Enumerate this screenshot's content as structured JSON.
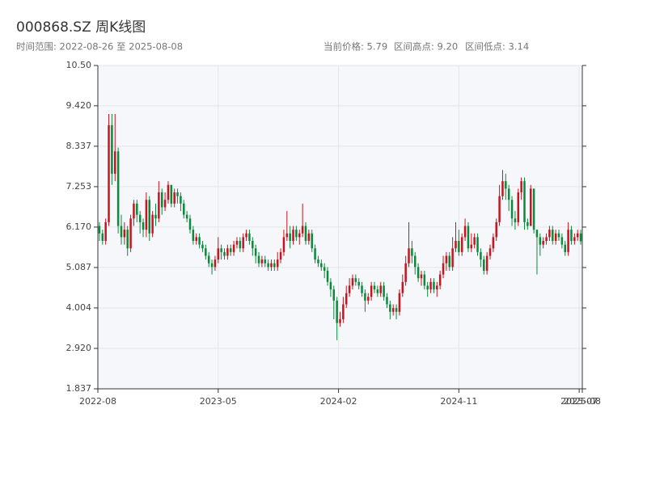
{
  "chart_data": {
    "type": "candlestick",
    "title": "000868.SZ 周K线图",
    "subtitle": "时间范围: 2022-08-26 至 2025-08-08",
    "info": [
      "当前价格: 5.79",
      "区间高点: 9.20",
      "区间低点: 3.14"
    ],
    "up_color": "#c8141e",
    "down_color": "#0c8a3c",
    "grid": true,
    "xlim": [
      0,
      155
    ],
    "xticks": [
      {
        "value": 0,
        "label": "2022-08"
      },
      {
        "value": 38.5,
        "label": "2023-05"
      },
      {
        "value": 77,
        "label": "2024-02"
      },
      {
        "value": 115.5,
        "label": "2024-11"
      },
      {
        "value": 154,
        "label": "2025-07"
      },
      {
        "value": 155,
        "label": "2025-08"
      }
    ],
    "ylim": [
      1.837,
      10.5
    ],
    "yticks": [
      1.837,
      {
        "value": 2.92,
        "label": "2.920"
      },
      4.004,
      5.087,
      {
        "value": 6.17,
        "label": "6.170"
      },
      7.253,
      8.337,
      {
        "value": 9.42,
        "label": "9.420"
      },
      {
        "value": 10.5,
        "label": "10.50"
      }
    ],
    "open": [
      6.2,
      6.0,
      5.8,
      6.3,
      8.9,
      7.6,
      8.2,
      6.2,
      5.9,
      6.1,
      5.6,
      6.4,
      6.8,
      6.5,
      6.3,
      6.1,
      6.9,
      6.0,
      6.5,
      6.4,
      7.1,
      6.7,
      6.9,
      7.3,
      6.8,
      7.1,
      7.0,
      6.8,
      6.5,
      6.4,
      6.1,
      5.8,
      5.9,
      5.7,
      5.6,
      5.4,
      5.2,
      5.1,
      5.3,
      5.6,
      5.5,
      5.4,
      5.6,
      5.5,
      5.7,
      5.8,
      5.6,
      5.9,
      6.0,
      5.8,
      5.6,
      5.4,
      5.2,
      5.3,
      5.2,
      5.1,
      5.2,
      5.1,
      5.3,
      5.5,
      5.9,
      6.0,
      5.8,
      6.1,
      5.9,
      6.0,
      6.2,
      5.8,
      6.0,
      5.6,
      5.3,
      5.2,
      5.1,
      5.0,
      4.7,
      4.5,
      4.2,
      3.6,
      3.7,
      4.1,
      4.4,
      4.6,
      4.8,
      4.7,
      4.6,
      4.4,
      4.2,
      4.3,
      4.6,
      4.5,
      4.4,
      4.6,
      4.3,
      4.1,
      3.9,
      4.0,
      3.9,
      4.4,
      4.7,
      5.2,
      5.6,
      5.4,
      5.1,
      4.8,
      4.9,
      4.6,
      4.5,
      4.7,
      4.5,
      4.6,
      4.9,
      5.2,
      5.4,
      5.1,
      5.6,
      5.8,
      5.5,
      5.9,
      6.2,
      5.6,
      5.7,
      5.9,
      5.5,
      5.3,
      5.0,
      5.4,
      5.6,
      5.9,
      6.3,
      7.0,
      7.4,
      7.2,
      6.9,
      6.4,
      6.3,
      7.1,
      7.4,
      6.3,
      6.2,
      7.2,
      6.1,
      5.9,
      5.7,
      5.8,
      5.9,
      6.1,
      5.8,
      6.0,
      5.9,
      5.7,
      5.5,
      6.1,
      5.8,
      5.9,
      6.0
    ],
    "high": [
      6.3,
      6.1,
      6.4,
      9.2,
      9.2,
      9.2,
      8.3,
      6.5,
      6.3,
      6.2,
      6.5,
      6.9,
      6.9,
      6.6,
      6.4,
      7.1,
      7.0,
      6.6,
      6.8,
      7.4,
      7.2,
      7.1,
      7.4,
      7.3,
      7.2,
      7.2,
      7.1,
      6.9,
      6.6,
      6.5,
      6.2,
      6.0,
      6.0,
      5.8,
      5.7,
      5.5,
      5.3,
      5.4,
      5.9,
      5.7,
      5.6,
      5.7,
      5.7,
      5.8,
      5.9,
      5.9,
      6.0,
      6.1,
      6.1,
      5.9,
      5.7,
      5.5,
      5.4,
      5.4,
      5.3,
      5.3,
      5.3,
      5.5,
      5.6,
      6.1,
      6.6,
      6.2,
      6.2,
      6.2,
      6.1,
      6.8,
      6.3,
      6.1,
      6.1,
      5.7,
      5.4,
      5.3,
      5.2,
      5.1,
      4.8,
      4.6,
      4.3,
      3.9,
      4.3,
      4.6,
      4.8,
      4.9,
      4.9,
      4.8,
      4.7,
      4.5,
      4.4,
      4.7,
      4.7,
      4.6,
      4.7,
      4.7,
      4.4,
      4.2,
      4.1,
      4.1,
      4.5,
      4.9,
      5.4,
      6.3,
      5.8,
      5.5,
      5.2,
      5.0,
      5.0,
      4.7,
      4.8,
      4.8,
      4.7,
      5.0,
      5.4,
      5.5,
      5.5,
      5.9,
      6.3,
      6.1,
      6.0,
      6.4,
      6.3,
      6.0,
      6.0,
      6.0,
      5.6,
      5.4,
      5.5,
      5.7,
      6.0,
      6.4,
      7.3,
      7.7,
      7.6,
      7.3,
      7.0,
      6.6,
      7.2,
      7.5,
      7.5,
      6.4,
      7.3,
      7.2,
      6.1,
      6.0,
      5.9,
      6.0,
      6.2,
      6.2,
      6.1,
      6.1,
      6.0,
      5.8,
      6.3,
      6.2,
      6.0,
      6.1,
      6.1
    ],
    "low": [
      5.8,
      5.7,
      5.7,
      6.2,
      7.3,
      7.4,
      6.0,
      5.7,
      5.7,
      5.4,
      5.5,
      6.2,
      6.3,
      6.0,
      5.9,
      5.9,
      5.8,
      5.9,
      6.2,
      6.3,
      6.5,
      6.6,
      6.8,
      6.7,
      6.7,
      6.8,
      6.6,
      6.4,
      6.3,
      6.0,
      5.7,
      5.7,
      5.6,
      5.5,
      5.3,
      5.1,
      4.9,
      5.0,
      5.2,
      5.3,
      5.3,
      5.3,
      5.4,
      5.4,
      5.6,
      5.5,
      5.5,
      5.8,
      5.7,
      5.4,
      5.2,
      5.1,
      5.1,
      5.1,
      5.0,
      5.0,
      5.0,
      5.0,
      5.2,
      5.4,
      5.8,
      5.6,
      5.7,
      5.8,
      5.7,
      5.9,
      5.7,
      5.7,
      5.5,
      5.2,
      5.1,
      5.0,
      4.8,
      4.6,
      4.3,
      3.7,
      3.14,
      3.5,
      3.6,
      4.0,
      4.3,
      4.5,
      4.6,
      4.5,
      4.3,
      3.9,
      4.1,
      4.2,
      4.4,
      4.3,
      4.3,
      4.2,
      4.0,
      3.7,
      3.8,
      3.7,
      3.8,
      4.3,
      4.6,
      5.1,
      5.2,
      4.9,
      4.7,
      4.6,
      4.5,
      4.3,
      4.4,
      4.4,
      4.3,
      4.5,
      4.8,
      5.0,
      5.0,
      5.0,
      5.5,
      5.4,
      5.4,
      5.8,
      5.5,
      5.5,
      5.6,
      5.4,
      5.1,
      4.9,
      4.9,
      5.3,
      5.5,
      5.8,
      6.2,
      6.9,
      6.9,
      6.6,
      6.2,
      6.1,
      6.2,
      6.9,
      6.1,
      6.1,
      6.2,
      6.0,
      4.9,
      5.4,
      5.6,
      5.7,
      5.8,
      5.7,
      5.7,
      5.8,
      5.6,
      5.4,
      5.4,
      5.7,
      5.7,
      5.8,
      5.7
    ],
    "close": [
      6.0,
      5.8,
      6.3,
      8.9,
      7.6,
      8.2,
      6.2,
      5.9,
      6.1,
      5.6,
      6.4,
      6.8,
      6.5,
      6.3,
      6.1,
      6.9,
      6.0,
      6.5,
      6.4,
      7.1,
      6.7,
      6.9,
      7.3,
      6.8,
      7.1,
      7.0,
      6.8,
      6.5,
      6.4,
      6.1,
      5.8,
      5.9,
      5.7,
      5.6,
      5.4,
      5.2,
      5.1,
      5.3,
      5.6,
      5.5,
      5.4,
      5.6,
      5.5,
      5.7,
      5.8,
      5.6,
      5.9,
      6.0,
      5.8,
      5.6,
      5.4,
      5.2,
      5.3,
      5.2,
      5.1,
      5.2,
      5.1,
      5.3,
      5.5,
      5.9,
      6.0,
      5.8,
      6.1,
      5.9,
      6.0,
      6.2,
      5.8,
      6.0,
      5.6,
      5.3,
      5.2,
      5.1,
      5.0,
      4.7,
      4.5,
      4.2,
      3.6,
      3.7,
      4.1,
      4.4,
      4.6,
      4.8,
      4.7,
      4.6,
      4.4,
      4.2,
      4.3,
      4.6,
      4.5,
      4.4,
      4.6,
      4.3,
      4.1,
      3.9,
      4.0,
      3.9,
      4.4,
      4.7,
      5.2,
      5.6,
      5.4,
      5.1,
      4.8,
      4.9,
      4.6,
      4.5,
      4.7,
      4.5,
      4.6,
      4.9,
      5.2,
      5.4,
      5.1,
      5.6,
      5.8,
      5.5,
      5.9,
      6.2,
      5.6,
      5.7,
      5.9,
      5.5,
      5.3,
      5.0,
      5.4,
      5.6,
      5.9,
      6.3,
      7.0,
      7.4,
      7.2,
      6.9,
      6.4,
      6.3,
      7.1,
      7.4,
      6.3,
      6.2,
      7.2,
      6.1,
      5.9,
      5.7,
      5.8,
      5.9,
      6.1,
      5.8,
      6.0,
      5.9,
      5.7,
      5.5,
      6.1,
      5.8,
      5.9,
      6.0,
      5.79
    ]
  }
}
